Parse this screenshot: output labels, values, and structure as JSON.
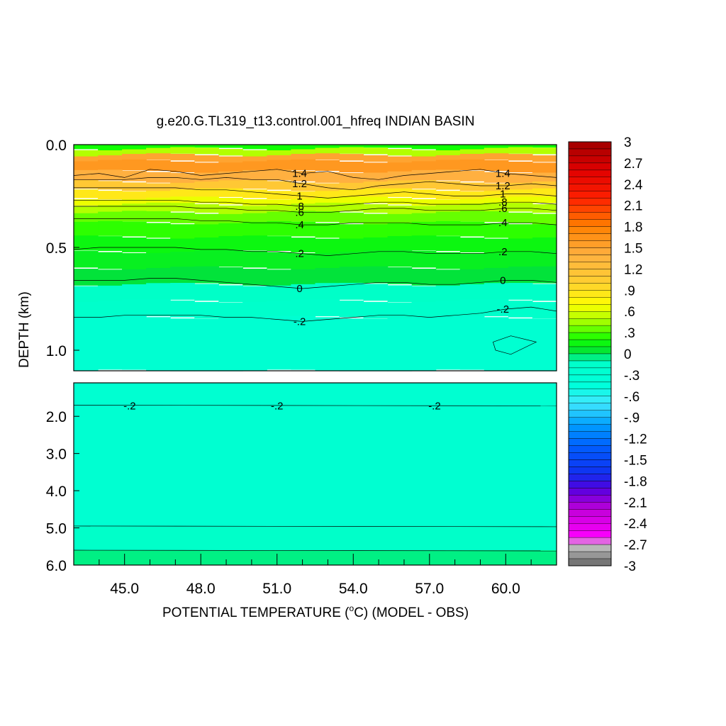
{
  "chart_data": {
    "type": "heatmap",
    "title": "g.e20.G.TL319_t13.control.001_hfreq INDIAN BASIN",
    "xlabel_prefix": "POTENTIAL TEMPERATURE (",
    "xlabel_sup": "o",
    "xlabel_suffix": "C) (MODEL - OBS)",
    "ylabel": "DEPTH (km)",
    "x_range": [
      43.0,
      62.0
    ],
    "x_ticks": [
      "45.0",
      "48.0",
      "51.0",
      "54.0",
      "57.0",
      "60.0"
    ],
    "x_tick_values": [
      45,
      48,
      51,
      54,
      57,
      60
    ],
    "upper_panel": {
      "depth_range": [
        0.0,
        1.1
      ],
      "y_ticks": [
        "0.0",
        "0.5",
        "1.0"
      ],
      "y_tick_values": [
        0.0,
        0.5,
        1.0
      ],
      "contours": [
        {
          "label": "1.4",
          "depths": [
            0.15,
            0.14,
            0.16,
            0.12,
            0.13,
            0.15,
            0.14,
            0.13,
            0.12,
            0.14,
            0.13,
            0.16,
            0.17,
            0.15,
            0.14,
            0.13,
            0.12,
            0.14,
            0.15,
            0.16
          ]
        },
        {
          "label": "1.2",
          "depths": [
            0.17,
            0.17,
            0.17,
            0.16,
            0.16,
            0.17,
            0.16,
            0.17,
            0.17,
            0.19,
            0.21,
            0.22,
            0.2,
            0.19,
            0.18,
            0.19,
            0.2,
            0.2,
            0.19,
            0.2
          ]
        },
        {
          "label": "1",
          "depths": [
            0.21,
            0.21,
            0.21,
            0.21,
            0.21,
            0.22,
            0.22,
            0.23,
            0.24,
            0.25,
            0.26,
            0.25,
            0.24,
            0.23,
            0.24,
            0.25,
            0.25,
            0.24,
            0.24,
            0.25
          ]
        },
        {
          "label": ".8",
          "depths": [
            0.27,
            0.27,
            0.27,
            0.27,
            0.27,
            0.28,
            0.28,
            0.29,
            0.29,
            0.3,
            0.3,
            0.29,
            0.28,
            0.28,
            0.29,
            0.29,
            0.29,
            0.28,
            0.28,
            0.29
          ]
        },
        {
          "label": ".6",
          "depths": [
            0.3,
            0.3,
            0.3,
            0.3,
            0.3,
            0.31,
            0.31,
            0.32,
            0.32,
            0.33,
            0.33,
            0.32,
            0.31,
            0.31,
            0.32,
            0.32,
            0.32,
            0.31,
            0.31,
            0.32
          ]
        },
        {
          "label": ".4",
          "depths": [
            0.36,
            0.36,
            0.36,
            0.36,
            0.36,
            0.37,
            0.37,
            0.38,
            0.38,
            0.39,
            0.39,
            0.38,
            0.38,
            0.38,
            0.39,
            0.39,
            0.39,
            0.38,
            0.38,
            0.39
          ]
        },
        {
          "label": ".2",
          "depths": [
            0.51,
            0.5,
            0.5,
            0.5,
            0.5,
            0.51,
            0.51,
            0.52,
            0.52,
            0.53,
            0.54,
            0.53,
            0.52,
            0.52,
            0.53,
            0.53,
            0.53,
            0.52,
            0.52,
            0.53
          ]
        },
        {
          "label": "0",
          "depths": [
            0.66,
            0.66,
            0.66,
            0.65,
            0.65,
            0.66,
            0.67,
            0.68,
            0.69,
            0.7,
            0.69,
            0.68,
            0.67,
            0.67,
            0.68,
            0.68,
            0.67,
            0.66,
            0.66,
            0.67
          ]
        },
        {
          "label": "-.2",
          "depths": [
            0.84,
            0.84,
            0.83,
            0.83,
            0.83,
            0.83,
            0.84,
            0.84,
            0.85,
            0.86,
            0.85,
            0.84,
            0.83,
            0.83,
            0.84,
            0.83,
            0.82,
            0.8,
            0.79,
            0.81
          ]
        }
      ]
    },
    "lower_panel": {
      "depth_range": [
        1.1,
        6.0
      ],
      "y_ticks": [
        "2.0",
        "3.0",
        "4.0",
        "5.0",
        "6.0"
      ],
      "y_tick_values": [
        2.0,
        3.0,
        4.0,
        5.0,
        6.0
      ],
      "contours": [
        {
          "label": "-.2",
          "depth": 1.7
        },
        {
          "label": "",
          "depth": 4.95
        },
        {
          "label": "",
          "depth": 5.6
        }
      ]
    },
    "colorbar": {
      "range": [
        -3,
        3
      ],
      "labels": [
        "3",
        "2.7",
        "2.4",
        "2.1",
        "1.8",
        "1.5",
        "1.2",
        ".9",
        ".6",
        ".3",
        "0",
        "-.3",
        "-.6",
        "-.9",
        "-1.2",
        "-1.5",
        "-1.8",
        "-2.1",
        "-2.4",
        "-2.7",
        "-3"
      ],
      "label_values": [
        3,
        2.7,
        2.4,
        2.1,
        1.8,
        1.5,
        1.2,
        0.9,
        0.6,
        0.3,
        0,
        -0.3,
        -0.6,
        -0.9,
        -1.2,
        -1.5,
        -1.8,
        -2.1,
        -2.4,
        -2.7,
        -3
      ],
      "stops": [
        {
          "value": -3.0,
          "color": "#666666"
        },
        {
          "value": -2.7,
          "color": "#c8c8c8"
        },
        {
          "value": -2.6,
          "color": "#ff00ff"
        },
        {
          "value": -2.2,
          "color": "#c000d8"
        },
        {
          "value": -1.9,
          "color": "#5000e0"
        },
        {
          "value": -1.7,
          "color": "#1030f0"
        },
        {
          "value": -1.3,
          "color": "#0060ff"
        },
        {
          "value": -1.0,
          "color": "#00a0ff"
        },
        {
          "value": -0.7,
          "color": "#40e8ff"
        },
        {
          "value": -0.45,
          "color": "#00ffdc"
        },
        {
          "value": -0.1,
          "color": "#00ffc8"
        },
        {
          "value": 0.0,
          "color": "#00e040"
        },
        {
          "value": 0.2,
          "color": "#10ff00"
        },
        {
          "value": 0.45,
          "color": "#a0ff00"
        },
        {
          "value": 0.7,
          "color": "#ffff00"
        },
        {
          "value": 1.0,
          "color": "#ffd030"
        },
        {
          "value": 1.4,
          "color": "#ffb040"
        },
        {
          "value": 1.8,
          "color": "#ff8000"
        },
        {
          "value": 2.2,
          "color": "#ff2000"
        },
        {
          "value": 2.6,
          "color": "#e00000"
        },
        {
          "value": 3.0,
          "color": "#a00000"
        }
      ]
    }
  }
}
